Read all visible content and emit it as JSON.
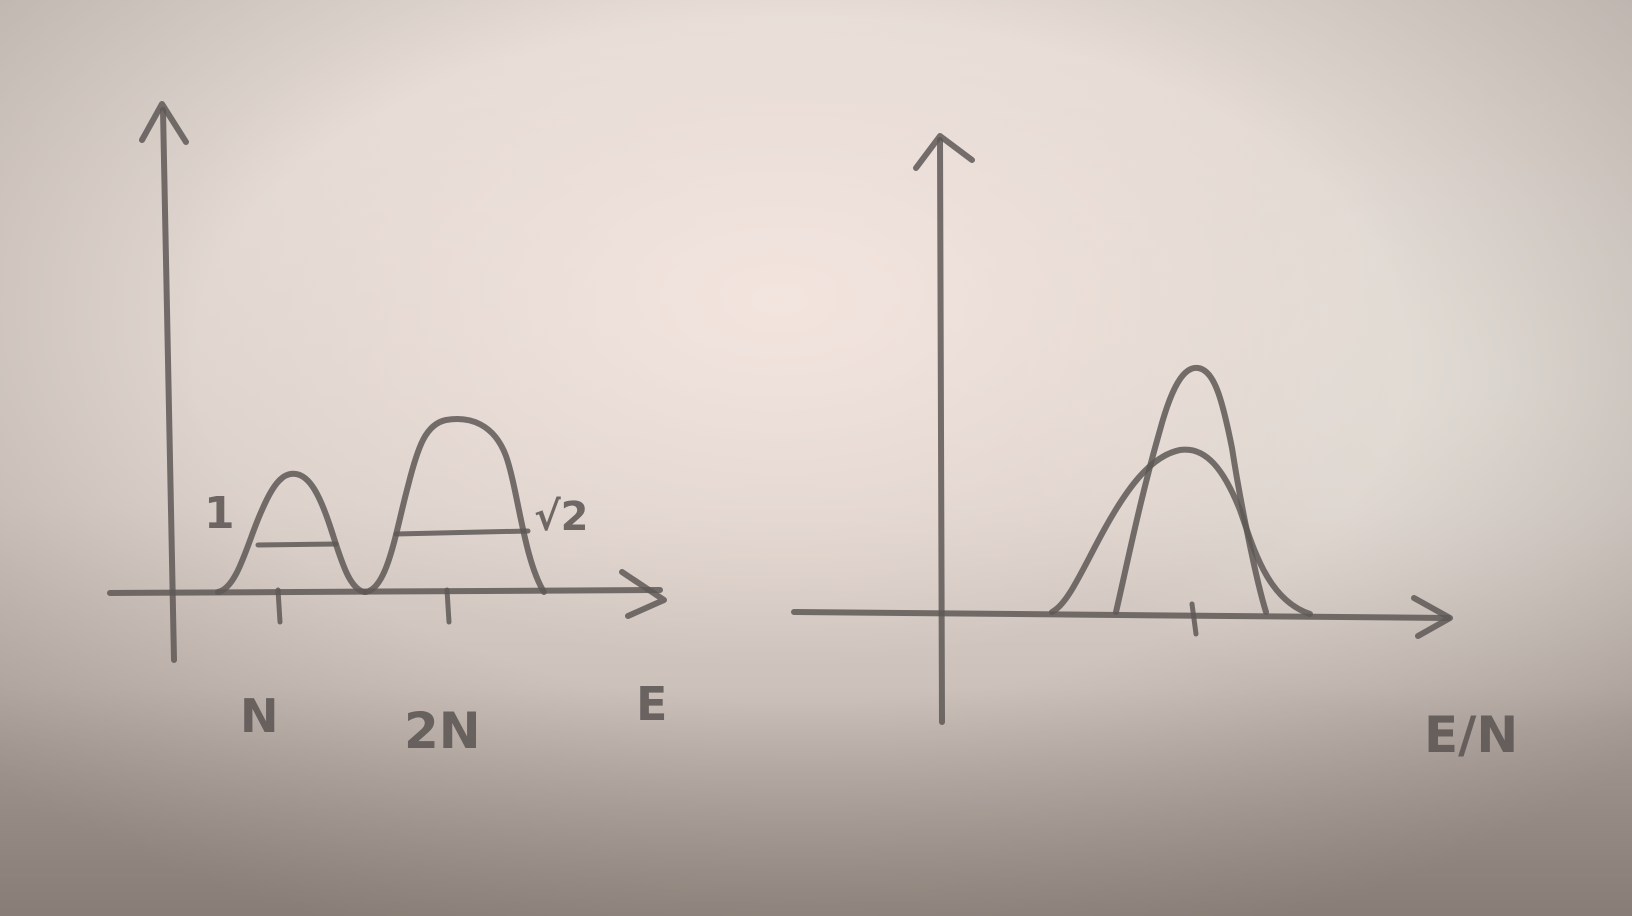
{
  "left_panel": {
    "x_axis_label": "E",
    "tick_labels": [
      "N",
      "2N"
    ],
    "peak_labels": [
      "1",
      "√2"
    ]
  },
  "right_panel": {
    "x_axis_label": "E/N"
  },
  "colors": {
    "pencil": "#5e5856",
    "paper": "#e6dcd6"
  }
}
